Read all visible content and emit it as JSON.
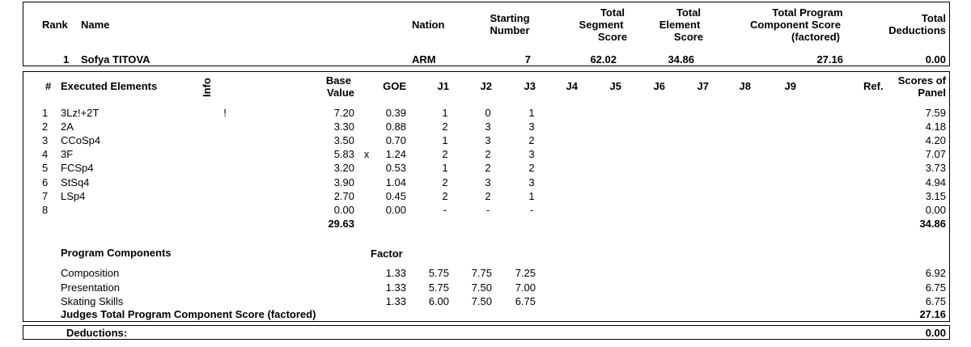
{
  "header": {
    "rank_label": "Rank",
    "name_label": "Name",
    "nation_label": "Nation",
    "starting_number_label": [
      "Starting",
      "Number"
    ],
    "tss_label": [
      "Total",
      "Segment",
      "Score"
    ],
    "tes_label": [
      "Total",
      "Element",
      "Score"
    ],
    "pcs_label": [
      "Total Program",
      "Component Score",
      "(factored)"
    ],
    "ded_label": [
      "Total",
      "Deductions"
    ]
  },
  "skater": {
    "rank": "1",
    "name": "Sofya TITOVA",
    "nation": "ARM",
    "starting_number": "7",
    "tss": "62.02",
    "tes": "34.86",
    "pcs": "27.16",
    "deductions": "0.00"
  },
  "elements_header": {
    "num": "#",
    "executed": "Executed Elements",
    "info": "Info",
    "base_value": [
      "Base",
      "Value"
    ],
    "goe": "GOE",
    "judges": [
      "J1",
      "J2",
      "J3",
      "J4",
      "J5",
      "J6",
      "J7",
      "J8",
      "J9"
    ],
    "ref": "Ref.",
    "scores_of_panel": [
      "Scores of",
      "Panel"
    ]
  },
  "elements": [
    {
      "num": "1",
      "name": "3Lz!+2T",
      "info": "!",
      "bv": "7.20",
      "x": "",
      "goe": "0.39",
      "j": [
        "1",
        "0",
        "1"
      ],
      "score": "7.59"
    },
    {
      "num": "2",
      "name": "2A",
      "info": "",
      "bv": "3.30",
      "x": "",
      "goe": "0.88",
      "j": [
        "2",
        "3",
        "3"
      ],
      "score": "4.18"
    },
    {
      "num": "3",
      "name": "CCoSp4",
      "info": "",
      "bv": "3.50",
      "x": "",
      "goe": "0.70",
      "j": [
        "1",
        "3",
        "2"
      ],
      "score": "4.20"
    },
    {
      "num": "4",
      "name": "3F",
      "info": "",
      "bv": "5.83",
      "x": "x",
      "goe": "1.24",
      "j": [
        "2",
        "2",
        "3"
      ],
      "score": "7.07"
    },
    {
      "num": "5",
      "name": "FCSp4",
      "info": "",
      "bv": "3.20",
      "x": "",
      "goe": "0.53",
      "j": [
        "1",
        "2",
        "2"
      ],
      "score": "3.73"
    },
    {
      "num": "6",
      "name": "StSq4",
      "info": "",
      "bv": "3.90",
      "x": "",
      "goe": "1.04",
      "j": [
        "2",
        "3",
        "3"
      ],
      "score": "4.94"
    },
    {
      "num": "7",
      "name": "LSp4",
      "info": "",
      "bv": "2.70",
      "x": "",
      "goe": "0.45",
      "j": [
        "2",
        "2",
        "1"
      ],
      "score": "3.15"
    },
    {
      "num": "8",
      "name": "",
      "info": "",
      "bv": "0.00",
      "x": "",
      "goe": "0.00",
      "j": [
        "-",
        "-",
        "-"
      ],
      "score": "0.00"
    }
  ],
  "elements_totals": {
    "bv": "29.63",
    "score": "34.86"
  },
  "components": {
    "title": "Program Components",
    "factor_label": "Factor",
    "rows": [
      {
        "name": "Composition",
        "factor": "1.33",
        "j": [
          "5.75",
          "7.75",
          "7.25"
        ],
        "score": "6.92"
      },
      {
        "name": "Presentation",
        "factor": "1.33",
        "j": [
          "5.75",
          "7.50",
          "7.00"
        ],
        "score": "6.75"
      },
      {
        "name": "Skating Skills",
        "factor": "1.33",
        "j": [
          "6.00",
          "7.50",
          "6.75"
        ],
        "score": "6.75"
      }
    ],
    "total_label": "Judges Total Program Component Score (factored)",
    "total": "27.16"
  },
  "deductions": {
    "label": "Deductions:",
    "value": "0.00"
  }
}
